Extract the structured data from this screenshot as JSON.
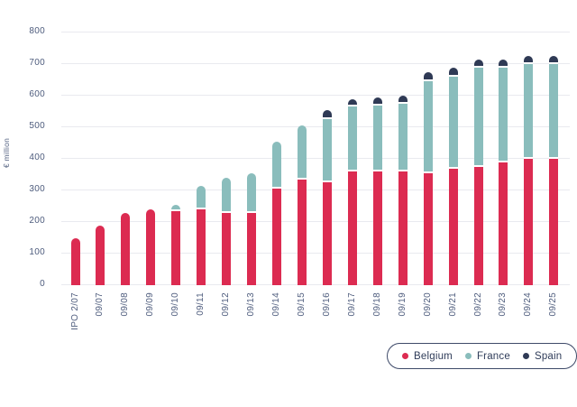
{
  "y_axis": {
    "title": "€ million",
    "tick_labels": [
      "0",
      "100",
      "200",
      "300",
      "400",
      "500",
      "600",
      "700",
      "800"
    ]
  },
  "colors": {
    "background": "#ffffff",
    "grid": "#e9eaef",
    "tick_text": "#4e5c7d",
    "legend_text": "#2f3c59",
    "legend_border": "#3e4a69",
    "belgium": "#dc2b51",
    "france": "#8abdbc",
    "spain": "#2f3a55"
  },
  "chart_data": {
    "type": "bar",
    "stacked": true,
    "title": "",
    "xlabel": "",
    "ylabel": "€ million",
    "ylim": [
      0,
      800
    ],
    "ytick_step": 100,
    "grid": true,
    "legend_position": "bottom-right",
    "categories": [
      "IPO 2/07",
      "09/07",
      "09/08",
      "09/09",
      "09/10",
      "09/11",
      "09/12",
      "09/13",
      "09/14",
      "09/15",
      "09/16",
      "09/17",
      "09/18",
      "09/19",
      "09/20",
      "09/21",
      "09/22",
      "09/23",
      "09/24",
      "09/25"
    ],
    "series": [
      {
        "name": "Belgium",
        "color": "#dc2b51",
        "values": [
          150,
          190,
          230,
          240,
          235,
          240,
          230,
          230,
          305,
          335,
          325,
          360,
          360,
          360,
          355,
          370,
          375,
          390,
          400,
          400
        ]
      },
      {
        "name": "France",
        "color": "#8abdbc",
        "values": [
          0,
          0,
          0,
          0,
          20,
          75,
          110,
          125,
          150,
          170,
          200,
          205,
          210,
          215,
          290,
          290,
          315,
          300,
          300,
          300
        ]
      },
      {
        "name": "Spain",
        "color": "#2f3a55",
        "values": [
          0,
          0,
          0,
          0,
          0,
          0,
          0,
          0,
          0,
          0,
          30,
          25,
          25,
          25,
          30,
          30,
          25,
          25,
          25,
          25
        ]
      }
    ]
  }
}
